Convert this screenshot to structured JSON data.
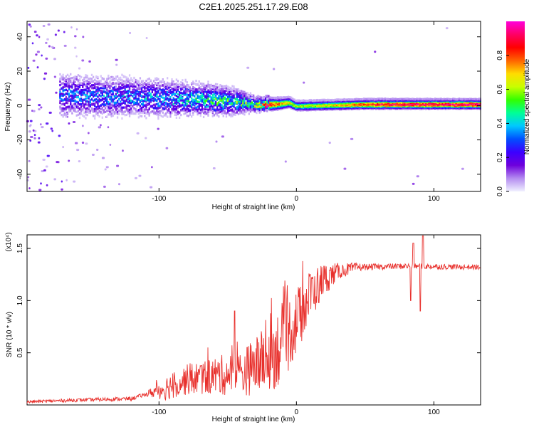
{
  "chart_data": [
    {
      "type": "heatmap",
      "title": "C2E1.2025.251.17.29.E08",
      "xlabel": "Height of straight line (km)",
      "ylabel": "Frequency (Hz)",
      "xlim": [
        -196,
        134
      ],
      "ylim": [
        -50,
        49
      ],
      "xticks": [
        -100,
        0,
        100
      ],
      "yticks": [
        -40,
        -20,
        0,
        20,
        40
      ],
      "colorbar": {
        "label": "Normalized spectral amplitude",
        "range": [
          0,
          1
        ],
        "ticks": [
          "0.0",
          "0.2",
          "0.4",
          "0.6",
          "0.8"
        ],
        "tick_values": [
          0.0,
          0.2,
          0.4,
          0.6,
          0.8
        ],
        "colormap": [
          "#f0f0ff",
          "#b48cf0",
          "#6e00dc",
          "#3c00ff",
          "#0050ff",
          "#00c8ff",
          "#00ff96",
          "#32ff00",
          "#c8ff00",
          "#ffdc00",
          "#ff6400",
          "#ff0000",
          "#ff0064",
          "#ff00dc"
        ]
      },
      "band_center_hz": [
        {
          "x": -170,
          "f": 6
        },
        {
          "x": -120,
          "f": 5
        },
        {
          "x": -80,
          "f": 4
        },
        {
          "x": -50,
          "f": 3
        },
        {
          "x": -30,
          "f": 1
        },
        {
          "x": -15,
          "f": 1
        },
        {
          "x": -5,
          "f": 2
        },
        {
          "x": 0,
          "f": 0
        },
        {
          "x": 50,
          "f": 1
        },
        {
          "x": 100,
          "f": 1
        },
        {
          "x": 134,
          "f": 1
        }
      ],
      "band_halfwidth_hz": [
        {
          "x": -170,
          "w": 9
        },
        {
          "x": -100,
          "w": 8
        },
        {
          "x": -50,
          "w": 6
        },
        {
          "x": -30,
          "w": 3
        },
        {
          "x": 0,
          "w": 2
        },
        {
          "x": 134,
          "w": 2
        }
      ],
      "band_amplitude": [
        {
          "x": -170,
          "a": 0.3
        },
        {
          "x": -100,
          "a": 0.35
        },
        {
          "x": -60,
          "a": 0.45
        },
        {
          "x": -30,
          "a": 0.55
        },
        {
          "x": -20,
          "a": 0.85
        },
        {
          "x": 0,
          "a": 0.6
        },
        {
          "x": 30,
          "a": 0.7
        },
        {
          "x": 60,
          "a": 0.9
        },
        {
          "x": 134,
          "a": 0.95
        }
      ]
    },
    {
      "type": "line",
      "xlabel": "Height of straight line (km)",
      "ylabel": "SNR (10 * v/v)",
      "y_multiplier": "(x10⁴)",
      "xlim": [
        -196,
        134
      ],
      "ylim": [
        0,
        1.63
      ],
      "xticks": [
        -100,
        0,
        100
      ],
      "yticks": [
        0.5,
        1.0,
        1.5
      ],
      "ytick_labels": [
        "0.5",
        "1.0",
        "1.5"
      ],
      "color": "#e8302c",
      "trend": [
        {
          "x": -196,
          "y": 0.03
        },
        {
          "x": -150,
          "y": 0.05
        },
        {
          "x": -120,
          "y": 0.06
        },
        {
          "x": -100,
          "y": 0.14
        },
        {
          "x": -80,
          "y": 0.24
        },
        {
          "x": -60,
          "y": 0.28
        },
        {
          "x": -40,
          "y": 0.3
        },
        {
          "x": -20,
          "y": 0.45
        },
        {
          "x": -10,
          "y": 0.6
        },
        {
          "x": 0,
          "y": 0.8
        },
        {
          "x": 10,
          "y": 1.05
        },
        {
          "x": 20,
          "y": 1.2
        },
        {
          "x": 30,
          "y": 1.28
        },
        {
          "x": 45,
          "y": 1.32
        },
        {
          "x": 80,
          "y": 1.33
        },
        {
          "x": 134,
          "y": 1.32
        }
      ],
      "noise_amplitude": [
        {
          "x": -196,
          "n": 0.015
        },
        {
          "x": -110,
          "n": 0.02
        },
        {
          "x": -95,
          "n": 0.12
        },
        {
          "x": -40,
          "n": 0.22
        },
        {
          "x": -10,
          "n": 0.4
        },
        {
          "x": 10,
          "n": 0.25
        },
        {
          "x": 30,
          "n": 0.08
        },
        {
          "x": 50,
          "n": 0.03
        },
        {
          "x": 134,
          "n": 0.025
        }
      ],
      "features": [
        {
          "x": -45,
          "y": 0.9
        },
        {
          "x": 10,
          "y": 1.25
        },
        {
          "x": 83,
          "y": 1.0
        },
        {
          "x": 85,
          "y": 1.55
        },
        {
          "x": 90,
          "y": 0.9
        },
        {
          "x": 92,
          "y": 1.62
        }
      ]
    }
  ]
}
